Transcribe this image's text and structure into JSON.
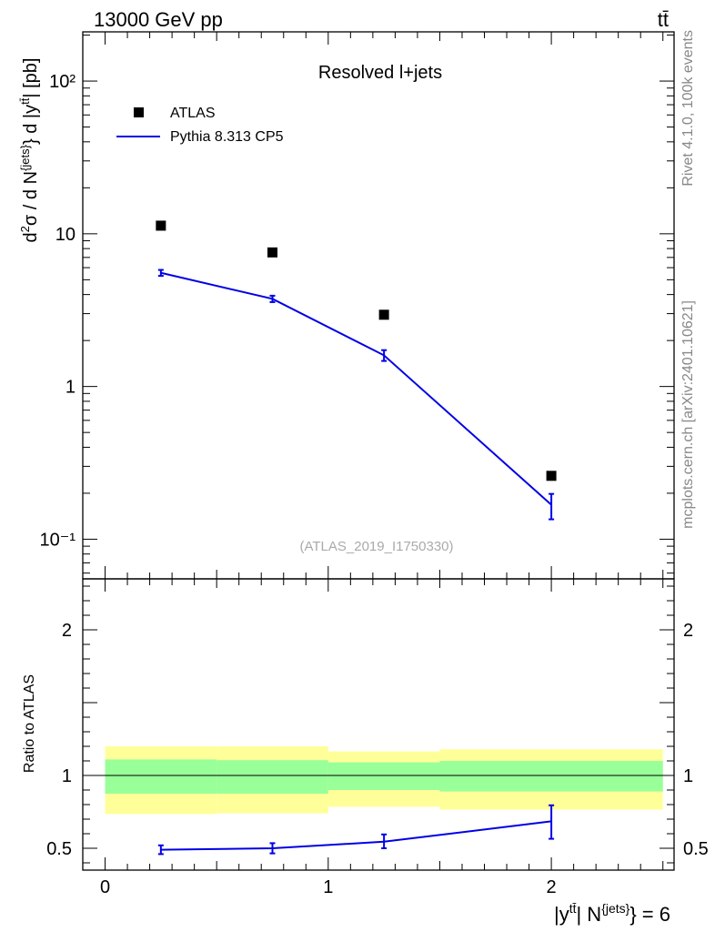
{
  "header": {
    "energy_label": "13000 GeV pp",
    "process_label": "tt̄"
  },
  "side_labels": {
    "rivet": "Rivet 4.1.0,  100k events",
    "mcplots": "mcplots.cern.ch [arXiv:2401.10621]"
  },
  "chart_data": [
    {
      "type": "scatter",
      "title": "Resolved l+jets",
      "analysis_tag": "(ATLAS_2019_I1750330)",
      "ylabel": "d²σ / d N^{jets} d |y^{tt̄}| [pb]",
      "yscale": "log",
      "ylim": [
        0.055,
        210
      ],
      "xlim": [
        -0.1,
        2.55
      ],
      "y_tick_labels": [
        "10⁻¹",
        "1",
        "10",
        "10²"
      ],
      "legend": {
        "placement": "top-left",
        "entries": [
          "ATLAS",
          "Pythia 8.313 CP5"
        ]
      },
      "series": [
        {
          "name": "ATLAS",
          "style": "black-squares",
          "x": [
            0.25,
            0.75,
            1.25,
            2.0
          ],
          "y": [
            11.3,
            7.55,
            2.95,
            0.26
          ]
        },
        {
          "name": "Pythia 8.313 CP5",
          "style": "blue-line",
          "color": "#0000e6",
          "x": [
            0.25,
            0.75,
            1.25,
            2.0
          ],
          "y": [
            5.55,
            3.75,
            1.6,
            0.168
          ],
          "err_low": [
            0.25,
            0.18,
            0.13,
            0.033
          ],
          "err_high": [
            0.25,
            0.18,
            0.13,
            0.03
          ]
        }
      ]
    },
    {
      "type": "line",
      "ylabel": "Ratio to ATLAS",
      "xlabel": "|y^{tt̄}| N^{jets} = 6",
      "ylim": [
        0.35,
        2.35
      ],
      "xlim": [
        -0.1,
        2.55
      ],
      "x_tick_labels": [
        "0",
        "1",
        "2"
      ],
      "y_tick_labels": [
        "0.5",
        "1",
        "2"
      ],
      "bands": [
        {
          "name": "total-uncertainty",
          "color": "#ffff99",
          "bins": [
            [
              0,
              0.5,
              0.735,
              1.2
            ],
            [
              0.5,
              1.0,
              0.74,
              1.2
            ],
            [
              1.0,
              1.5,
              0.785,
              1.165
            ],
            [
              1.5,
              2.5,
              0.765,
              1.18
            ]
          ]
        },
        {
          "name": "stat-uncertainty",
          "color": "#99ff99",
          "bins": [
            [
              0,
              0.5,
              0.875,
              1.11
            ],
            [
              0.5,
              1.0,
              0.875,
              1.105
            ],
            [
              1.0,
              1.5,
              0.9,
              1.09
            ],
            [
              1.5,
              2.5,
              0.89,
              1.1
            ]
          ]
        }
      ],
      "series": [
        {
          "name": "Pythia 8.313 CP5 / ATLAS",
          "color": "#0000e6",
          "x": [
            0.25,
            0.75,
            1.25,
            2.0
          ],
          "y": [
            0.49,
            0.5,
            0.545,
            0.685
          ],
          "err_low": [
            0.03,
            0.035,
            0.045,
            0.12
          ],
          "err_high": [
            0.03,
            0.035,
            0.05,
            0.11
          ]
        }
      ]
    }
  ]
}
